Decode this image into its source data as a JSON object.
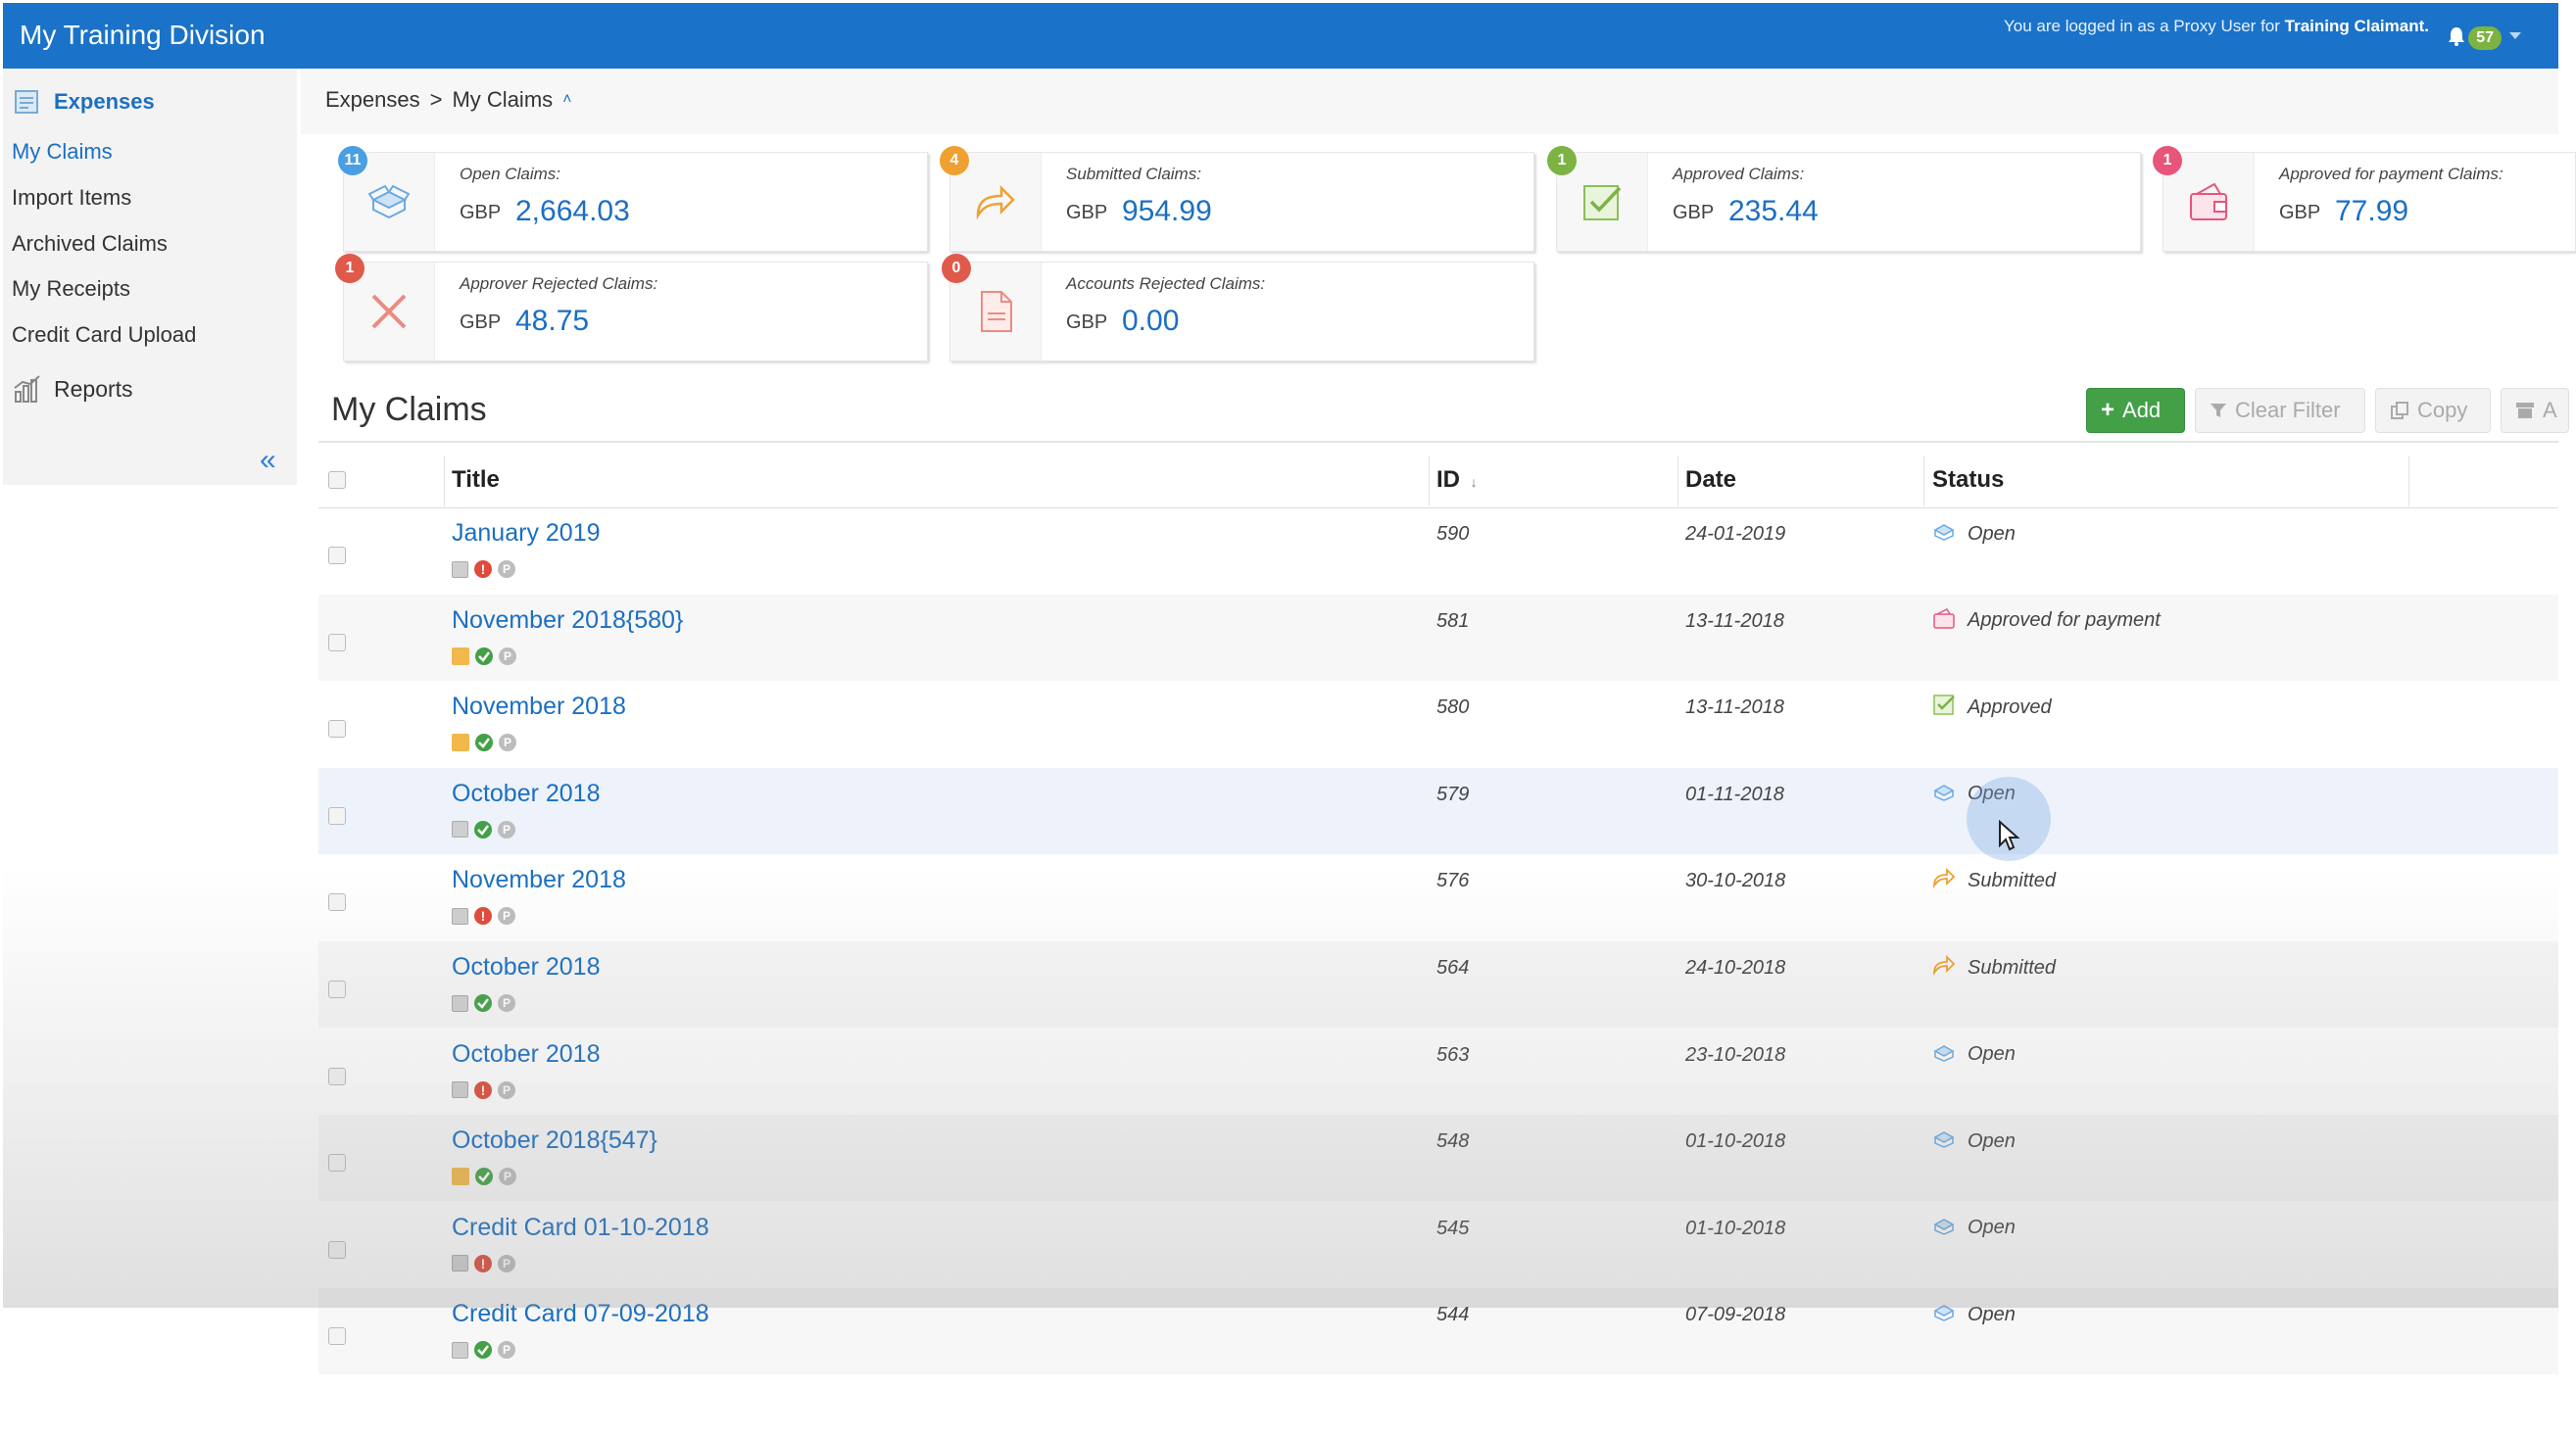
{
  "header": {
    "app_title": "My Training Division",
    "proxy_prefix": "You are logged in as a Proxy User for",
    "proxy_user": "Training Claimant.",
    "notifications_count": "57"
  },
  "sidebar": {
    "section": "Expenses",
    "items": [
      {
        "label": "My Claims",
        "active": true
      },
      {
        "label": "Import Items",
        "active": false
      },
      {
        "label": "Archived Claims",
        "active": false
      },
      {
        "label": "My Receipts",
        "active": false
      },
      {
        "label": "Credit Card Upload",
        "active": false
      }
    ],
    "reports": "Reports",
    "collapse_glyph": "«"
  },
  "breadcrumb": {
    "root": "Expenses",
    "separator": ">",
    "current": "My Claims",
    "up_glyph": "˄"
  },
  "summary": [
    {
      "label": "Open Claims:",
      "currency": "GBP",
      "amount": "2,664.03",
      "count": "11",
      "color": "#4a9fe3"
    },
    {
      "label": "Submitted Claims:",
      "currency": "GBP",
      "amount": "954.99",
      "count": "4",
      "color": "#f0a030"
    },
    {
      "label": "Approved Claims:",
      "currency": "GBP",
      "amount": "235.44",
      "count": "1",
      "color": "#7cb342"
    },
    {
      "label": "Approved for payment Claims:",
      "currency": "GBP",
      "amount": "77.99",
      "count": "1",
      "color": "#e7557a"
    },
    {
      "label": "Approver Rejected Claims:",
      "currency": "GBP",
      "amount": "48.75",
      "count": "1",
      "color": "#e05a4b"
    },
    {
      "label": "Accounts Rejected Claims:",
      "currency": "GBP",
      "amount": "0.00",
      "count": "0",
      "color": "#e05a4b"
    }
  ],
  "section": {
    "title": "My Claims",
    "buttons": {
      "add": "Add",
      "clear_filter": "Clear Filter",
      "copy": "Copy",
      "archive": "A"
    }
  },
  "table": {
    "columns": {
      "title": "Title",
      "id": "ID",
      "sort_glyph": "↓",
      "date": "Date",
      "status": "Status"
    },
    "rows": [
      {
        "title": "January 2019",
        "id": "590",
        "date": "24-01-2019",
        "status": "Open",
        "status_icon": "open-icon",
        "attach": "none",
        "check": "error"
      },
      {
        "title": "November 2018{580}",
        "id": "581",
        "date": "13-11-2018",
        "status": "Approved for payment",
        "status_icon": "payment-icon",
        "attach": "folder",
        "check": "ok"
      },
      {
        "title": "November 2018",
        "id": "580",
        "date": "13-11-2018",
        "status": "Approved",
        "status_icon": "approved-icon",
        "attach": "folder",
        "check": "ok"
      },
      {
        "title": "October 2018",
        "id": "579",
        "date": "01-11-2018",
        "status": "Open",
        "status_icon": "open-icon",
        "attach": "none",
        "check": "ok"
      },
      {
        "title": "November 2018",
        "id": "576",
        "date": "30-10-2018",
        "status": "Submitted",
        "status_icon": "submitted-icon",
        "attach": "none",
        "check": "error"
      },
      {
        "title": "October 2018",
        "id": "564",
        "date": "24-10-2018",
        "status": "Submitted",
        "status_icon": "submitted-icon",
        "attach": "none",
        "check": "ok"
      },
      {
        "title": "October 2018",
        "id": "563",
        "date": "23-10-2018",
        "status": "Open",
        "status_icon": "open-icon",
        "attach": "none",
        "check": "error"
      },
      {
        "title": "October 2018{547}",
        "id": "548",
        "date": "01-10-2018",
        "status": "Open",
        "status_icon": "open-icon",
        "attach": "folder",
        "check": "ok"
      },
      {
        "title": "Credit Card 01-10-2018",
        "id": "545",
        "date": "01-10-2018",
        "status": "Open",
        "status_icon": "open-icon",
        "attach": "none",
        "check": "error"
      },
      {
        "title": "Credit Card 07-09-2018",
        "id": "544",
        "date": "07-09-2018",
        "status": "Open",
        "status_icon": "open-icon",
        "attach": "none",
        "check": "ok"
      }
    ]
  }
}
